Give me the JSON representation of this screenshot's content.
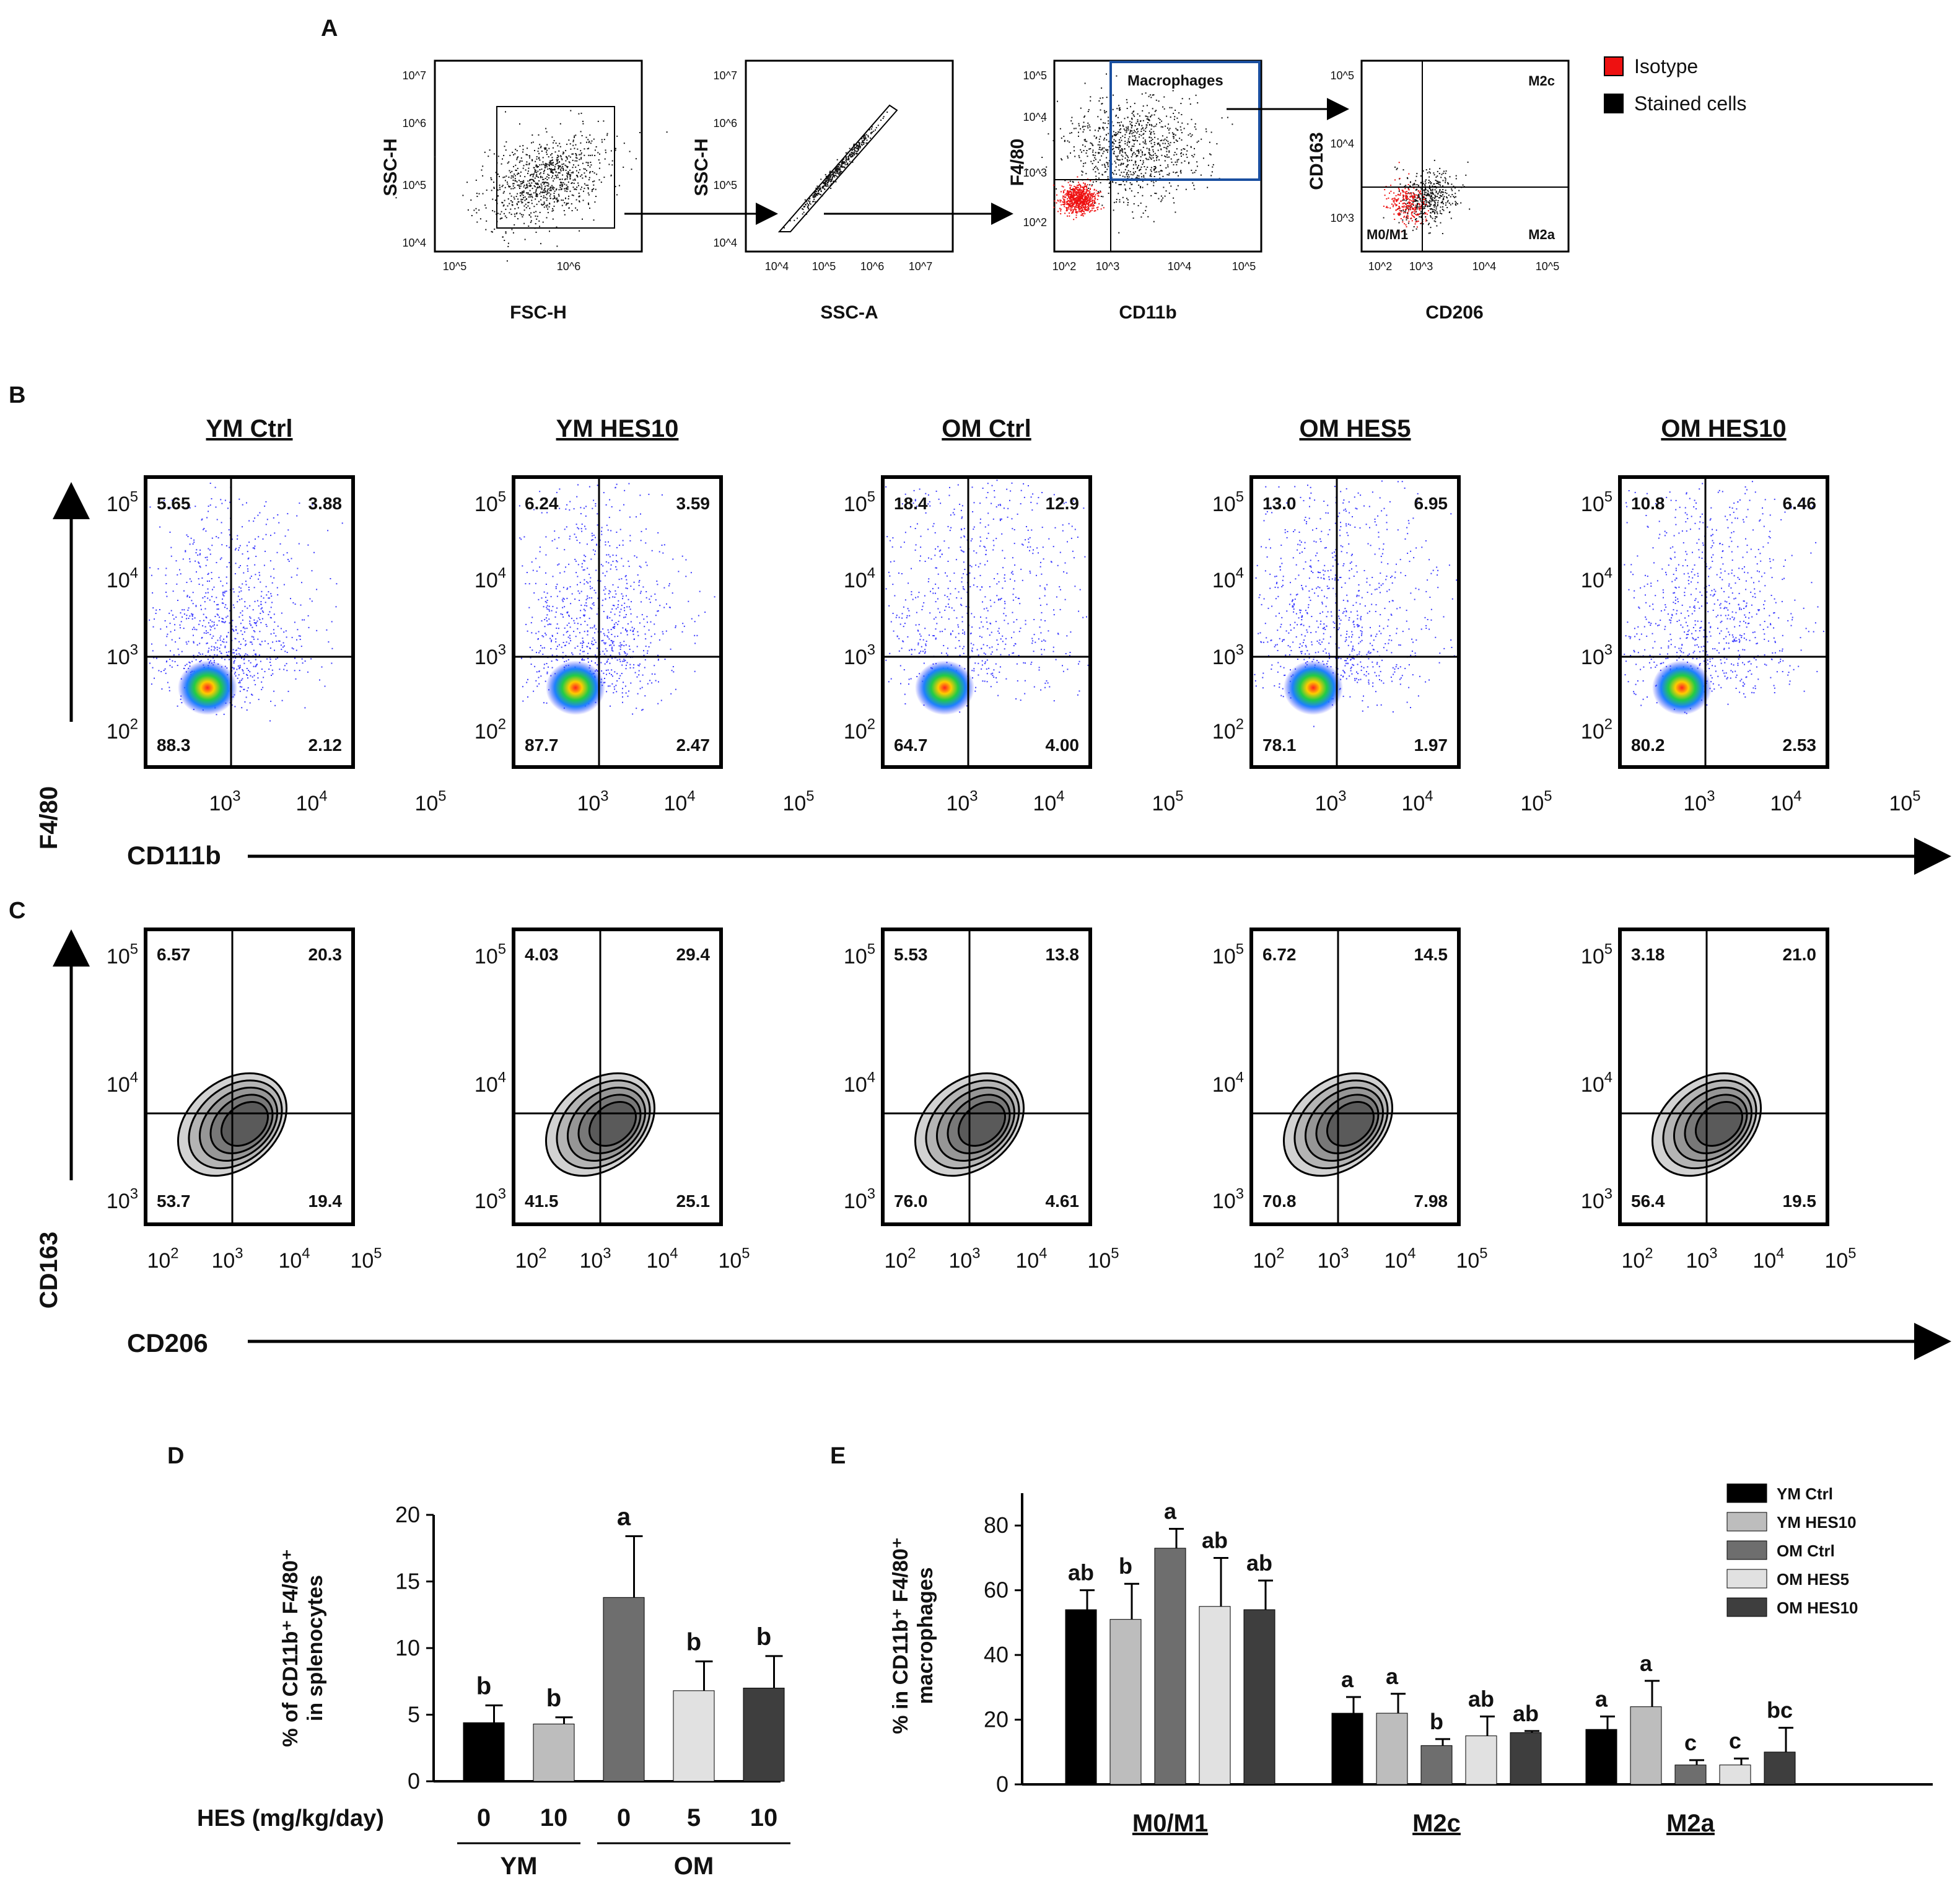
{
  "figure": {
    "panel_letters": [
      "A",
      "B",
      "C",
      "D",
      "E"
    ],
    "panel_a": {
      "plots": [
        {
          "x_label": "FSC-H",
          "y_label": "SSC-H",
          "x_ticks": [
            "10^5",
            "10^6"
          ],
          "y_ticks": [
            "10^4",
            "10^5",
            "10^6",
            "10^7"
          ]
        },
        {
          "x_label": "SSC-A",
          "y_label": "SSC-H",
          "x_ticks": [
            "10^4",
            "10^5",
            "10^6",
            "10^7"
          ],
          "y_ticks": [
            "10^4",
            "10^5",
            "10^6",
            "10^7"
          ]
        },
        {
          "x_label": "CD11b",
          "y_label": "F4/80",
          "gate_label": "Macrophages",
          "x_ticks": [
            "10^2",
            "10^3",
            "10^4",
            "10^5"
          ],
          "y_ticks": [
            "10^2",
            "10^3",
            "10^4",
            "10^5"
          ]
        },
        {
          "x_label": "CD206",
          "y_label": "CD163",
          "quadrants": [
            "M2c",
            "M0/M1",
            "M2a"
          ],
          "x_ticks": [
            "10^2",
            "10^3",
            "10^4",
            "10^5"
          ],
          "y_ticks": [
            "10^3",
            "10^4",
            "10^5"
          ]
        }
      ],
      "legend": [
        {
          "label": "Isotype",
          "color": "#ee1111"
        },
        {
          "label": "Stained cells",
          "color": "#000000"
        }
      ]
    },
    "panel_b": {
      "x_axis": "CD111b",
      "y_axis": "F4/80",
      "y_ticks": [
        "10^2",
        "10^3",
        "10^4",
        "10^5"
      ],
      "x_ticks": [
        "10^3",
        "10^4",
        "10^5"
      ],
      "plots": [
        {
          "title": "YM Ctrl",
          "ul": "5.65",
          "ur": "3.88",
          "ll": "88.3",
          "lr": "2.12"
        },
        {
          "title": "YM HES10",
          "ul": "6.24",
          "ur": "3.59",
          "ll": "87.7",
          "lr": "2.47"
        },
        {
          "title": "OM Ctrl",
          "ul": "18.4",
          "ur": "12.9",
          "ll": "64.7",
          "lr": "4.00"
        },
        {
          "title": "OM HES5",
          "ul": "13.0",
          "ur": "6.95",
          "ll": "78.1",
          "lr": "1.97"
        },
        {
          "title": "OM HES10",
          "ul": "10.8",
          "ur": "6.46",
          "ll": "80.2",
          "lr": "2.53"
        }
      ]
    },
    "panel_c": {
      "x_axis": "CD206",
      "y_axis": "CD163",
      "y_ticks": [
        "10^3",
        "10^4",
        "10^5"
      ],
      "x_ticks": [
        "10^2",
        "10^3",
        "10^4",
        "10^5"
      ],
      "plots": [
        {
          "ul": "6.57",
          "ur": "20.3",
          "ll": "53.7",
          "lr": "19.4"
        },
        {
          "ul": "4.03",
          "ur": "29.4",
          "ll": "41.5",
          "lr": "25.1"
        },
        {
          "ul": "5.53",
          "ur": "13.8",
          "ll": "76.0",
          "lr": "4.61"
        },
        {
          "ul": "6.72",
          "ur": "14.5",
          "ll": "70.8",
          "lr": "7.98"
        },
        {
          "ul": "3.18",
          "ur": "21.0",
          "ll": "56.4",
          "lr": "19.5"
        }
      ]
    }
  },
  "chart_data": [
    {
      "type": "bar",
      "panel": "D",
      "ylabel": "% of CD11b⁺ F4/80⁺ in splenocytes",
      "ylim": [
        0,
        20
      ],
      "y_ticks": [
        0,
        5,
        10,
        15,
        20
      ],
      "xlabel": "HES (mg/kg/day)",
      "categories": [
        "0",
        "10",
        "0",
        "5",
        "10"
      ],
      "groups": [
        {
          "name": "YM",
          "span": [
            0,
            1
          ]
        },
        {
          "name": "OM",
          "span": [
            2,
            4
          ]
        }
      ],
      "values": [
        4.4,
        4.3,
        13.8,
        6.8,
        7.0
      ],
      "errors": [
        1.3,
        0.5,
        4.6,
        2.2,
        2.4
      ],
      "letters": [
        "b",
        "b",
        "a",
        "b",
        "b"
      ],
      "colors": [
        "#000000",
        "#bdbdbd",
        "#6e6e6e",
        "#e1e1e1",
        "#3e3e3e"
      ]
    },
    {
      "type": "bar",
      "panel": "E",
      "ylabel": "% in CD11b⁺ F4/80⁺ macrophages",
      "ylim": [
        0,
        90
      ],
      "y_ticks": [
        0,
        20,
        40,
        60,
        80
      ],
      "categories": [
        "M0/M1",
        "M2c",
        "M2a"
      ],
      "series": [
        {
          "name": "YM Ctrl",
          "color": "#000000",
          "values": [
            54,
            22,
            17
          ],
          "errors": [
            6,
            5,
            4
          ],
          "letters": [
            "ab",
            "a",
            "a"
          ]
        },
        {
          "name": "YM HES10",
          "color": "#bdbdbd",
          "values": [
            51,
            22,
            24
          ],
          "errors": [
            11,
            6,
            8
          ],
          "letters": [
            "b",
            "a",
            "a"
          ]
        },
        {
          "name": "OM Ctrl",
          "color": "#6e6e6e",
          "values": [
            73,
            12,
            6
          ],
          "errors": [
            6,
            2,
            1.5
          ],
          "letters": [
            "a",
            "b",
            "c"
          ]
        },
        {
          "name": "OM HES5",
          "color": "#e1e1e1",
          "values": [
            55,
            15,
            6
          ],
          "errors": [
            15,
            6,
            2
          ],
          "letters": [
            "ab",
            "ab",
            "c"
          ]
        },
        {
          "name": "OM HES10",
          "color": "#3e3e3e",
          "values": [
            54,
            16,
            10
          ],
          "errors": [
            9,
            0.5,
            7.5
          ],
          "letters": [
            "ab",
            "ab",
            "bc"
          ]
        }
      ]
    }
  ]
}
